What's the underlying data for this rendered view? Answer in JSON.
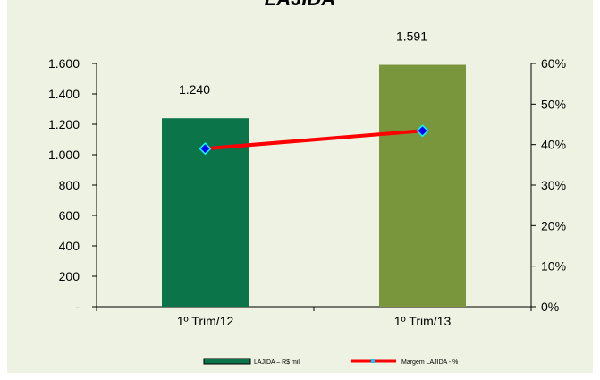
{
  "chart_data": {
    "type": "bar",
    "title": "LAJIDA",
    "categories": [
      "1º Trim/12",
      "1º Trim/13"
    ],
    "series": [
      {
        "name": "LAJIDA – R$ mil",
        "kind": "bar",
        "axis": "left",
        "values": [
          1240,
          1591
        ],
        "labels": [
          "1.240",
          "1.591"
        ],
        "colors": [
          "#0b7549",
          "#7a963c"
        ]
      },
      {
        "name": "Margem LAJIDA - %",
        "kind": "line",
        "axis": "right",
        "values": [
          0.39,
          0.434
        ],
        "color": "#ff0000",
        "marker_color": "#0000ff"
      }
    ],
    "y_left": {
      "min": 0,
      "max": 1600,
      "ticks": [
        0,
        200,
        400,
        600,
        800,
        1000,
        1200,
        1400,
        1600
      ],
      "tick_labels": [
        "-",
        "200",
        "400",
        "600",
        "800",
        "1.000",
        "1.200",
        "1.400",
        "1.600"
      ]
    },
    "y_right": {
      "min": 0,
      "max": 0.6,
      "ticks": [
        0,
        0.1,
        0.2,
        0.3,
        0.4,
        0.5,
        0.6
      ],
      "tick_labels": [
        "0%",
        "10%",
        "20%",
        "30%",
        "40%",
        "50%",
        "60%"
      ]
    },
    "grid": false,
    "legend": "bottom"
  }
}
